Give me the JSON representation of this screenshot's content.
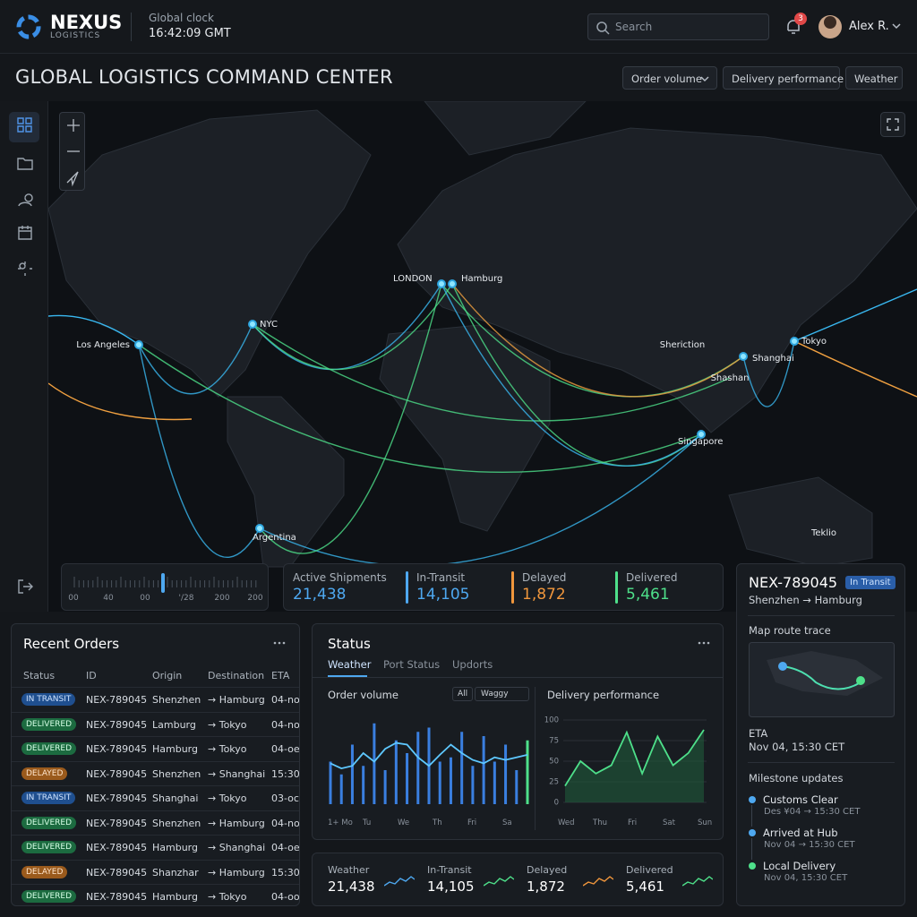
{
  "header": {
    "brand": "NEXUS",
    "brand_sub": "LOGISTICS",
    "clock_label": "Global clock",
    "clock": "16:42:09 GMT",
    "search_placeholder": "Search",
    "notification_count": "3",
    "user": "Alex R."
  },
  "title": "GLOBAL LOGISTICS COMMAND CENTER",
  "filters": [
    "Order volume",
    "Delivery performance",
    "Weather"
  ],
  "map": {
    "labels": [
      "LONDON",
      "Hamburg",
      "NYC",
      "Los Angeles",
      "Sheriction",
      "Shanghai",
      "Shashan",
      "Tokyo",
      "Singapore",
      "Argentina",
      "Teklio"
    ]
  },
  "timeline": {
    "labels": [
      "00",
      "40",
      "00",
      "'/28",
      "200",
      "200"
    ]
  },
  "kpis": [
    {
      "label": "Active Shipments",
      "value": "21,438"
    },
    {
      "label": "In-Transit",
      "value": "14,105"
    },
    {
      "label": "Delayed",
      "value": "1,872"
    },
    {
      "label": "Delivered",
      "value": "5,461"
    }
  ],
  "shipment": {
    "id": "NEX-789045",
    "status": "In Transit",
    "route": "Shenzhen → Hamburg",
    "route_title": "Map route trace",
    "eta_label": "ETA",
    "eta": "Nov 04, 15:30 CET",
    "milestones_title": "Milestone updates",
    "milestones": [
      {
        "name": "Customs Clear",
        "time": "Des ¥04 → 15:30 CET"
      },
      {
        "name": "Arrived at Hub",
        "time": "Nov 04 → 15:30 CET"
      },
      {
        "name": "Local Delivery",
        "time": "Nov 04, 15:30 CET"
      }
    ]
  },
  "recent_orders": {
    "title": "Recent Orders",
    "columns": [
      "Status",
      "ID",
      "Origin",
      "Destination",
      "ETA"
    ],
    "rows": [
      [
        "IN TRANSIT",
        "NEX-789045",
        "Shenzhen",
        "→ Hamburg",
        "04-no"
      ],
      [
        "DELIVERED",
        "NEX-789045",
        "Lamburg",
        "→ Tokyo",
        "04-no"
      ],
      [
        "DELIVERED",
        "NEX-789045",
        "Hamburg",
        "→ Tokyo",
        "04-oe"
      ],
      [
        "DELAYED",
        "NEX-789045",
        "Shenzhen",
        "→ Shanghai",
        "15:30"
      ],
      [
        "IN TRANSIT",
        "NEX-789045",
        "Shanghai",
        "→ Tokyo",
        "03-oc"
      ],
      [
        "DELIVERED",
        "NEX-789045",
        "Shenzhen",
        "→ Hamburg",
        "04-no"
      ],
      [
        "DELIVERED",
        "NEX-789045",
        "Hamburg",
        "→ Shanghai",
        "04-oe"
      ],
      [
        "DELAYED",
        "NEX-789045",
        "Shanzhar",
        "→ Hamburg",
        "15:30"
      ],
      [
        "DELIVERED",
        "NEX-789045",
        "Hamburg",
        "→ Tokyo",
        "04-oo"
      ]
    ]
  },
  "status_panel": {
    "title": "Status",
    "tabs": [
      "Weather",
      "Port Status",
      "Updorts"
    ],
    "order_volume": {
      "title": "Order volume",
      "filter_all": "All",
      "filter_select": "Waggy",
      "x_labels": [
        "1+ Mo",
        "Tu",
        "We",
        "Th",
        "Fri",
        "Sa"
      ],
      "ylim": [
        0,
        100
      ],
      "bars": [
        50,
        35,
        70,
        45,
        95,
        40,
        75,
        60,
        85,
        90,
        50,
        55,
        85,
        45,
        80,
        50,
        70,
        40,
        75
      ],
      "line": [
        48,
        42,
        45,
        60,
        50,
        65,
        72,
        70,
        55,
        45,
        58,
        70,
        60,
        52,
        48,
        55,
        52,
        55,
        58
      ]
    },
    "delivery": {
      "title": "Delivery performance",
      "ylim": [
        0,
        100
      ],
      "yticks": [
        0,
        25,
        50,
        75,
        100
      ],
      "x_labels": [
        "Wed",
        "Thu",
        "Fri",
        "Sat",
        "Sun"
      ],
      "values": [
        20,
        50,
        35,
        45,
        85,
        35,
        80,
        45,
        60,
        88
      ]
    }
  },
  "bottom_stats": [
    {
      "label": "Weather",
      "value": "21,438"
    },
    {
      "label": "In-Transit",
      "value": "14,105"
    },
    {
      "label": "Delayed",
      "value": "1,872"
    },
    {
      "label": "Delivered",
      "value": "5,461"
    }
  ]
}
